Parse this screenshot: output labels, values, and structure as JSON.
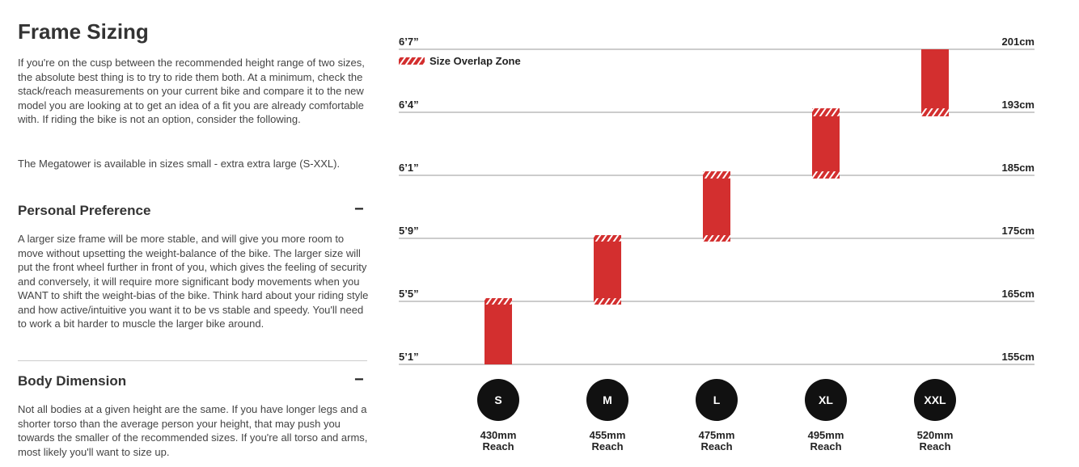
{
  "article": {
    "title": "Frame Sizing",
    "intro": [
      "If you're on the cusp between the recommended height range of two sizes, the absolute best thing is to try to ride them both. At a minimum, check the stack/reach measurements on your current bike and compare it to the new model you are looking at to get an idea of a fit you are already comfortable with. If riding the bike is not an option, consider the following.",
      "The Megatower is available in sizes small - extra extra large (S-XXL)."
    ],
    "sections": [
      {
        "heading": "Personal Preference",
        "toggle": "−",
        "body": "A larger size frame will be more stable, and will give you more room to move without upsetting the weight-balance of the bike. The larger size will put the front wheel further in front of you, which gives the feeling of security and conversely, it will require more significant body movements when you WANT to shift the weight-bias of the bike. Think hard about your riding style and how active/intuitive you want it to be vs stable and speedy. You'll need to work a bit harder to muscle the larger bike around."
      },
      {
        "heading": "Body Dimension",
        "toggle": "−",
        "body": "Not all bodies at a given height are the same. If you have longer legs and a shorter torso than the average person your height, that may push you towards the smaller of the recommended sizes. If you're all torso and arms, most likely you'll want to size up."
      }
    ]
  },
  "chart_data": {
    "type": "range-bar",
    "legend": "Size Overlap Zone",
    "color": "#d32f2f",
    "yticks": [
      {
        "value": 155,
        "label": "155cm"
      },
      {
        "value": 165,
        "label": "165cm"
      },
      {
        "value": 175,
        "label": "175cm"
      },
      {
        "value": 185,
        "label": "185cm"
      },
      {
        "value": 193,
        "label": "193cm"
      },
      {
        "value": 201,
        "label": "201cm"
      }
    ],
    "yticks_ft": [
      "5’1”",
      "5’5”",
      "5’9”",
      "6’1”",
      "6’4”",
      "6’7”"
    ],
    "ylim": [
      155,
      201
    ],
    "categories": [
      "S",
      "M",
      "L",
      "XL",
      "XXL"
    ],
    "bars": [
      {
        "min": 155,
        "max": 165.5
      },
      {
        "min": 164.5,
        "max": 175.5
      },
      {
        "min": 174.5,
        "max": 185.5
      },
      {
        "min": 184.5,
        "max": 193.5
      },
      {
        "min": 192.5,
        "max": 201
      }
    ],
    "reach": [
      {
        "value": 430,
        "label": "430mm"
      },
      {
        "value": 455,
        "label": "455mm"
      },
      {
        "value": 475,
        "label": "475mm"
      },
      {
        "value": 495,
        "label": "495mm"
      },
      {
        "value": 520,
        "label": "520mm"
      }
    ],
    "reach_caption": "Reach"
  }
}
